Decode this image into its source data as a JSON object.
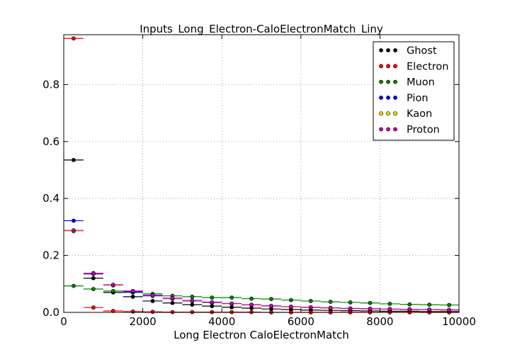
{
  "chart_data": {
    "type": "scatter",
    "title": "Inputs_Long_Electron-CaloElectronMatch_Liny",
    "xlabel": "Long Electron CaloElectronMatch",
    "ylabel": "",
    "xlim": [
      0,
      10000
    ],
    "ylim": [
      0,
      0.975
    ],
    "xticks": [
      0,
      2000,
      4000,
      6000,
      8000,
      10000
    ],
    "xtick_labels": [
      "0",
      "2000",
      "4000",
      "6000",
      "8000",
      "10000"
    ],
    "yticks": [
      0.0,
      0.2,
      0.4,
      0.6,
      0.8
    ],
    "ytick_labels": [
      "0.0",
      "0.2",
      "0.4",
      "0.6",
      "0.8"
    ],
    "grid": true,
    "legend_position": "top-right",
    "bin_width": 500,
    "x": [
      250,
      750,
      1250,
      1750,
      2250,
      2750,
      3250,
      3750,
      4250,
      4750,
      5250,
      5750,
      6250,
      6750,
      7250,
      7750,
      8250,
      8750,
      9250,
      9750
    ],
    "series": [
      {
        "name": "Ghost",
        "color": "#000000",
        "values": [
          0.535,
          0.12,
          0.07,
          0.055,
          0.04,
          0.033,
          0.027,
          0.022,
          0.018,
          0.015,
          0.012,
          0.01,
          0.008,
          0.007,
          0.006,
          0.005,
          0.004,
          0.004,
          0.003,
          0.003
        ]
      },
      {
        "name": "Electron",
        "color": "#ff0000",
        "values": [
          0.962,
          0.017,
          0.005,
          0.003,
          0.002,
          0.001,
          0.001,
          0.001,
          0.001,
          0.001,
          0.0,
          0.0,
          0.0,
          0.0,
          0.0,
          0.0,
          0.0,
          0.0,
          0.0,
          0.0
        ]
      },
      {
        "name": "Muon",
        "color": "#008000",
        "values": [
          0.093,
          0.082,
          0.075,
          0.07,
          0.065,
          0.058,
          0.055,
          0.052,
          0.052,
          0.048,
          0.047,
          0.043,
          0.04,
          0.037,
          0.035,
          0.033,
          0.03,
          0.028,
          0.027,
          0.026
        ]
      },
      {
        "name": "Pion",
        "color": "#0000ff",
        "values": [
          0.322,
          0.135,
          0.095,
          0.072,
          0.058,
          0.048,
          0.04,
          0.034,
          0.03,
          0.026,
          0.022,
          0.019,
          0.017,
          0.015,
          0.013,
          0.012,
          0.011,
          0.01,
          0.009,
          0.008
        ]
      },
      {
        "name": "Kaon",
        "color": "#ffd700",
        "values": [
          0.285,
          0.138,
          0.095,
          0.075,
          0.06,
          0.049,
          0.041,
          0.035,
          0.03,
          0.026,
          0.022,
          0.019,
          0.017,
          0.015,
          0.013,
          0.012,
          0.011,
          0.01,
          0.009,
          0.008
        ]
      },
      {
        "name": "Proton",
        "color": "#bf00bf",
        "values": [
          0.288,
          0.137,
          0.097,
          0.075,
          0.06,
          0.05,
          0.042,
          0.036,
          0.031,
          0.027,
          0.023,
          0.02,
          0.018,
          0.016,
          0.014,
          0.013,
          0.012,
          0.011,
          0.01,
          0.009
        ]
      }
    ]
  }
}
